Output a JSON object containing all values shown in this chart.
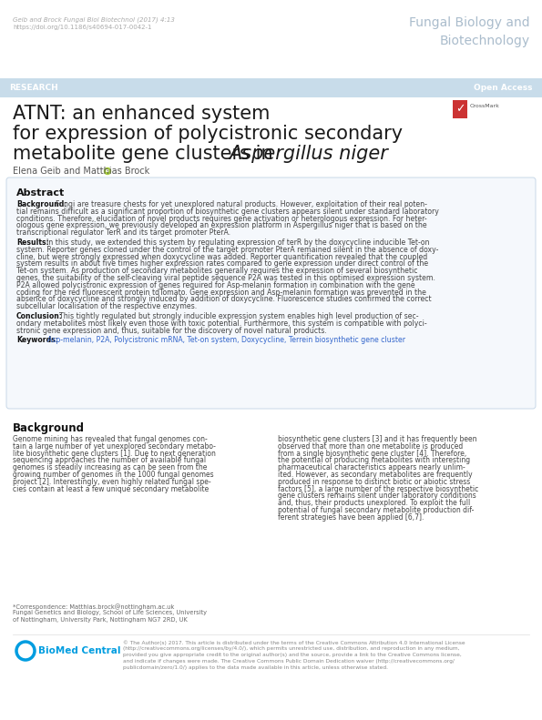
{
  "bg_color": "#ffffff",
  "header_bar_color": "#c8dcea",
  "journal_name": "Fungal Biology and\nBiotechnology",
  "citation_line1": "Geib and Brock Fungal Biol Biotechnol (2017) 4:13",
  "citation_line2": "https://doi.org/10.1186/s40694-017-0042-1",
  "research_label": "RESEARCH",
  "open_access_label": "Open Access",
  "title_line1": "ATNT: an enhanced system",
  "title_line2": "for expression of polycistronic secondary",
  "title_line3_pre": "metabolite gene clusters in ",
  "title_line3_italic": "Aspergillus niger",
  "authors": "Elena Geib and Matthias Brock",
  "abstract_title": "Abstract",
  "background_bold": "Background:",
  "background_lines": [
    "  Fungi are treasure chests for yet unexplored natural products. However, exploitation of their real poten-",
    "tial remains difficult as a significant proportion of biosynthetic gene clusters appears silent under standard laboratory",
    "conditions. Therefore, elucidation of novel products requires gene activation or heterologous expression. For heter-",
    "ologous gene expression, we previously developed an expression platform in Aspergillus niger that is based on the",
    "transcriptional regulator TerR and its target promoter PterA."
  ],
  "results_bold": "Results:",
  "results_lines": [
    "  In this study, we extended this system by regulating expression of terR by the doxycycline inducible Tet-on",
    "system. Reporter genes cloned under the control of the target promoter PterA remained silent in the absence of doxy-",
    "cline, but were strongly expressed when doxycycline was added. Reporter quantification revealed that the coupled",
    "system results in about five times higher expression rates compared to gene expression under direct control of the",
    "Tet-on system. As production of secondary metabolites generally requires the expression of several biosynthetic",
    "genes, the suitability of the self-cleaving viral peptide sequence P2A was tested in this optimised expression system.",
    "P2A allowed polycistronic expression of genes required for Asp-melanin formation in combination with the gene",
    "coding for the red fluorescent protein tdTomato. Gene expression and Asp-melanin formation was prevented in the",
    "absence of doxycycline and strongly induced by addition of doxycycline. Fluorescence studies confirmed the correct",
    "subcellular localisation of the respective enzymes."
  ],
  "conclusion_bold": "Conclusion:",
  "conclusion_lines": [
    "  This tightly regulated but strongly inducible expression system enables high level production of sec-",
    "ondary metabolites most likely even those with toxic potential. Furthermore, this system is compatible with polyci-",
    "stronic gene expression and, thus, suitable for the discovery of novel natural products."
  ],
  "keywords_bold": "Keywords:",
  "keywords_text": "Asp-melanin, P2A, Polycistronic mRNA, Tet-on system, Doxycycline, Terrein biosynthetic gene cluster",
  "background_section_title": "Background",
  "col1_lines": [
    "Genome mining has revealed that fungal genomes con-",
    "tain a large number of yet unexplored secondary metabo-",
    "lite biosynthetic gene clusters [1]. Due to next generation",
    "sequencing approaches the number of available fungal",
    "genomes is steadily increasing as can be seen from the",
    "growing number of genomes in the 1000 fungal genomes",
    "project [2]. Interestingly, even highly related fungal spe-",
    "cies contain at least a few unique secondary metabolite"
  ],
  "col2_lines": [
    "biosynthetic gene clusters [3] and it has frequently been",
    "observed that more than one metabolite is produced",
    "from a single biosynthetic gene cluster [4]. Therefore,",
    "the potential of producing metabolites with interesting",
    "pharmaceutical characteristics appears nearly unlim-",
    "ited. However, as secondary metabolites are frequently",
    "produced in response to distinct biotic or abiotic stress",
    "factors [5], a large number of the respective biosynthetic",
    "gene clusters remains silent under laboratory conditions",
    "and, thus, their products unexplored. To exploit the full",
    "potential of fungal secondary metabolite production dif-",
    "ferent strategies have been applied [6,7]."
  ],
  "footnote_lines": [
    "*Correspondence: Matthias.brock@nottingham.ac.uk",
    "Fungal Genetics and Biology, School of Life Sciences, University",
    "of Nottingham, University Park, Nottingham NG7 2RD, UK"
  ],
  "footer_text_lines": [
    "© The Author(s) 2017. This article is distributed under the terms of the Creative Commons Attribution 4.0 International License",
    "(http://creativecommons.org/licenses/by/4.0/), which permits unrestricted use, distribution, and reproduction in any medium,",
    "provided you give appropriate credit to the original author(s) and the source, provide a link to the Creative Commons license,",
    "and indicate if changes were made. The Creative Commons Public Domain Dedication waiver (http://creativecommons.org/",
    "publicdomain/zero/1.0/) applies to the data made available in this article, unless otherwise stated."
  ],
  "header_bar_color_rgb": "#c8dcea",
  "abstract_box_bg": "#f5f8fc",
  "abstract_box_border": "#c8d8e8",
  "research_text_color": "#7a9ab8",
  "open_access_color": "#7a9ab8",
  "journal_color": "#aabccc",
  "citation_color": "#aaaaaa",
  "title_color": "#1a1a1a",
  "author_color": "#555555",
  "bold_color": "#111111",
  "body_color": "#444444",
  "keywords_color": "#3366cc",
  "section_title_color": "#111111",
  "footer_color": "#888888",
  "bmc_blue": "#009de0",
  "footnote_color": "#666666"
}
